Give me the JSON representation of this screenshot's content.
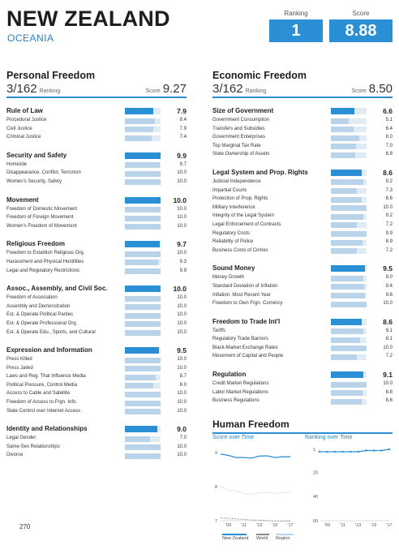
{
  "header": {
    "country": "NEW ZEALAND",
    "region": "OCEANIA",
    "ranking_label": "Ranking",
    "ranking": "1",
    "score_label": "Score",
    "score": "8.88"
  },
  "personal": {
    "title": "Personal Freedom",
    "rank": "3/162",
    "rank_word": "Ranking",
    "score_word": "Score",
    "score": "9.27",
    "categories": [
      {
        "name": "Rule of Law",
        "score": 7.9,
        "display": "7.9",
        "items": [
          {
            "name": "Procedural Justice",
            "score": 8.4,
            "display": "8.4"
          },
          {
            "name": "Civil Justice",
            "score": 7.9,
            "display": "7.9"
          },
          {
            "name": "Criminal Justice",
            "score": 7.4,
            "display": "7.4"
          }
        ]
      },
      {
        "name": "Security and Safety",
        "score": 9.9,
        "display": "9.9",
        "items": [
          {
            "name": "Homicide",
            "score": 9.7,
            "display": "9.7"
          },
          {
            "name": "Disappearance, Conflict, Terrorism",
            "score": 10.0,
            "display": "10.0"
          },
          {
            "name": "Women's Security, Safety",
            "score": 10.0,
            "display": "10.0"
          }
        ]
      },
      {
        "name": "Movement",
        "score": 10.0,
        "display": "10.0",
        "items": [
          {
            "name": "Freedom of Domestic Movement",
            "score": 10.0,
            "display": "10.0"
          },
          {
            "name": "Freedom of Foreign Movement",
            "score": 10.0,
            "display": "10.0"
          },
          {
            "name": "Women's Freedom of Movement",
            "score": 10.0,
            "display": "10.0"
          }
        ]
      },
      {
        "name": "Religious Freedom",
        "score": 9.7,
        "display": "9.7",
        "items": [
          {
            "name": "Freedom to Establish Religious Org.",
            "score": 10.0,
            "display": "10.0"
          },
          {
            "name": "Harassment and Physical Hostilities",
            "score": 9.3,
            "display": "9.3"
          },
          {
            "name": "Legal and Regulatory Restrictions",
            "score": 9.9,
            "display": "9.9"
          }
        ]
      },
      {
        "name": "Assoc., Assembly, and Civil Soc.",
        "score": 10.0,
        "display": "10.0",
        "items": [
          {
            "name": "Freedom of Association",
            "score": 10.0,
            "display": "10.0"
          },
          {
            "name": "Assembly and Demonstration",
            "score": 10.0,
            "display": "10.0"
          },
          {
            "name": "Est. & Operate Political Parties",
            "score": 10.0,
            "display": "10.0"
          },
          {
            "name": "Est. & Operate Professional Org.",
            "score": 10.0,
            "display": "10.0"
          },
          {
            "name": "Est. & Operate Edu., Sports, and Cultural",
            "score": 10.0,
            "display": "10.0"
          }
        ]
      },
      {
        "name": "Expression and Information",
        "score": 9.5,
        "display": "9.5",
        "items": [
          {
            "name": "Press Killed",
            "score": 10.0,
            "display": "10.0"
          },
          {
            "name": "Press Jailed",
            "score": 10.0,
            "display": "10.0"
          },
          {
            "name": "Laws and Reg. That Influence Media",
            "score": 8.7,
            "display": "8.7"
          },
          {
            "name": "Political Pressure, Control Media",
            "score": 8.0,
            "display": "8.0"
          },
          {
            "name": "Access to Cable and Satellite",
            "score": 10.0,
            "display": "10.0"
          },
          {
            "name": "Freedom of Access to Frgn. Info.",
            "score": 10.0,
            "display": "10.0"
          },
          {
            "name": "State Control over Internet Access",
            "score": 10.0,
            "display": "10.0"
          }
        ]
      },
      {
        "name": "Identity and Relationships",
        "score": 9.0,
        "display": "9.0",
        "items": [
          {
            "name": "Legal Gender",
            "score": 7.0,
            "display": "7.0"
          },
          {
            "name": "Same-Sex Relationships",
            "score": 10.0,
            "display": "10.0"
          },
          {
            "name": "Divorce",
            "score": 10.0,
            "display": "10.0"
          }
        ]
      }
    ]
  },
  "economic": {
    "title": "Economic Freedom",
    "rank": "3/162",
    "rank_word": "Ranking",
    "score_word": "Score",
    "score": "8.50",
    "categories": [
      {
        "name": "Size of Government",
        "score": 6.6,
        "display": "6.6",
        "items": [
          {
            "name": "Government Consumption",
            "score": 5.1,
            "display": "5.1"
          },
          {
            "name": "Transfers and Subsidies",
            "score": 6.4,
            "display": "6.4"
          },
          {
            "name": "Government Enterprises",
            "score": 8.0,
            "display": "8.0"
          },
          {
            "name": "Top Marginal Tax Rate",
            "score": 7.0,
            "display": "7.0"
          },
          {
            "name": "State Ownership of Assets",
            "score": 6.8,
            "display": "6.8"
          }
        ]
      },
      {
        "name": "Legal System and Prop. Rights",
        "score": 8.6,
        "display": "8.6",
        "items": [
          {
            "name": "Judicial Independence",
            "score": 9.2,
            "display": "9.2"
          },
          {
            "name": "Impartial Courts",
            "score": 7.3,
            "display": "7.3"
          },
          {
            "name": "Protection of Prop. Rights",
            "score": 8.6,
            "display": "8.6"
          },
          {
            "name": "Military Interference",
            "score": 10.0,
            "display": "10.0"
          },
          {
            "name": "Integrity of the Legal System",
            "score": 9.2,
            "display": "9.2"
          },
          {
            "name": "Legal Enforcement of Contracts",
            "score": 7.2,
            "display": "7.2"
          },
          {
            "name": "Regulatory Costs",
            "score": 9.9,
            "display": "9.9"
          },
          {
            "name": "Reliability of Police",
            "score": 8.9,
            "display": "8.9"
          },
          {
            "name": "Business Costs of Crimes",
            "score": 7.2,
            "display": "7.2"
          }
        ]
      },
      {
        "name": "Sound Money",
        "score": 9.5,
        "display": "9.5",
        "items": [
          {
            "name": "Money Growth",
            "score": 9.0,
            "display": "9.0"
          },
          {
            "name": "Standard Deviation of Inflation",
            "score": 9.4,
            "display": "9.4"
          },
          {
            "name": "Inflation: Most Recent Year",
            "score": 9.6,
            "display": "9.6"
          },
          {
            "name": "Freedom to Own Frgn. Currency",
            "score": 10.0,
            "display": "10.0"
          }
        ]
      },
      {
        "name": "Freedom to Trade Int'l",
        "score": 8.6,
        "display": "8.6",
        "items": [
          {
            "name": "Tariffs",
            "score": 9.1,
            "display": "9.1"
          },
          {
            "name": "Regulatory Trade Barriers",
            "score": 8.1,
            "display": "8.1"
          },
          {
            "name": "Black-Market Exchange Rates",
            "score": 10.0,
            "display": "10.0"
          },
          {
            "name": "Movement of Capital and People",
            "score": 7.2,
            "display": "7.2"
          }
        ]
      },
      {
        "name": "Regulation",
        "score": 9.1,
        "display": "9.1",
        "items": [
          {
            "name": "Credit Market Regulations",
            "score": 10.0,
            "display": "10.0"
          },
          {
            "name": "Labor Market Regulations",
            "score": 8.8,
            "display": "8.8"
          },
          {
            "name": "Business Regulations",
            "score": 8.6,
            "display": "8.6"
          }
        ]
      }
    ]
  },
  "human_freedom": {
    "title": "Human Freedom",
    "score_subtitle": "Score over Time",
    "rank_subtitle": "Ranking over Time",
    "legend": [
      "New Zealand",
      "World",
      "Region"
    ],
    "colors": {
      "country": "#2b8fd6",
      "world": "#8a8a8a",
      "region": "#b9d3ea"
    }
  },
  "chart_data": [
    {
      "type": "line",
      "title": "Score over Time",
      "x": [
        2008,
        2009,
        2010,
        2011,
        2012,
        2013,
        2014,
        2015,
        2016,
        2017
      ],
      "x_tick_labels": [
        "'09",
        "'11",
        "'13",
        "'15",
        "'17"
      ],
      "x_tick_values": [
        2009,
        2011,
        2013,
        2015,
        2017
      ],
      "y_tick_labels": [
        "7",
        "8",
        "9"
      ],
      "y_tick_values": [
        7,
        8,
        9
      ],
      "ylim": [
        7,
        9.1
      ],
      "series": [
        {
          "name": "New Zealand",
          "values": [
            8.96,
            8.92,
            8.86,
            8.86,
            8.84,
            8.9,
            8.91,
            8.86,
            8.88,
            8.88
          ]
        },
        {
          "name": "World",
          "values": [
            7.08,
            7.07,
            7.05,
            7.04,
            7.02,
            7.02,
            7.0,
            6.99,
            6.98,
            6.99
          ]
        },
        {
          "name": "Region",
          "values": [
            8.02,
            7.9,
            7.88,
            7.8,
            7.78,
            7.82,
            7.84,
            7.8,
            7.83,
            7.82
          ]
        }
      ]
    },
    {
      "type": "line",
      "title": "Ranking over Time",
      "x": [
        2008,
        2009,
        2010,
        2011,
        2012,
        2013,
        2014,
        2015,
        2016,
        2017
      ],
      "x_tick_labels": [
        "'09",
        "'11",
        "'13",
        "'15",
        "'17"
      ],
      "x_tick_values": [
        2009,
        2011,
        2013,
        2015,
        2017
      ],
      "y_tick_labels": [
        "1",
        "20",
        "40",
        "60"
      ],
      "y_tick_values": [
        1,
        20,
        40,
        60
      ],
      "ylim": [
        1,
        60
      ],
      "inverted": true,
      "series": [
        {
          "name": "New Zealand",
          "values": [
            3,
            3,
            3,
            3,
            3,
            3,
            2,
            2,
            2,
            1
          ]
        }
      ]
    }
  ],
  "footer": {
    "page": "270"
  }
}
